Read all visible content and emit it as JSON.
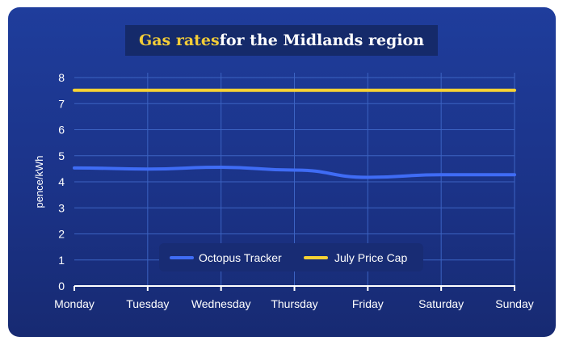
{
  "title": {
    "highlight": "Gas rates",
    "rest": " for the Midlands region"
  },
  "chart_data": {
    "type": "line",
    "title": "Gas rates for the Midlands region",
    "xlabel": "",
    "ylabel": "pence/kWh",
    "categories": [
      "Monday",
      "Tuesday",
      "Wednesday",
      "Thursday",
      "Friday",
      "Saturday",
      "Sunday"
    ],
    "ylim": [
      0,
      8
    ],
    "yticks": [
      0,
      1,
      2,
      3,
      4,
      5,
      6,
      7,
      8
    ],
    "grid": true,
    "legend_position": "bottom-center",
    "series": [
      {
        "name": "Octopus Tracker",
        "color": "#3f6cf5",
        "values": [
          4.53,
          4.49,
          4.56,
          4.45,
          4.17,
          4.27,
          4.27
        ]
      },
      {
        "name": "July Price Cap",
        "color": "#f7d234",
        "values": [
          7.51,
          7.51,
          7.51,
          7.51,
          7.51,
          7.51,
          7.51
        ]
      }
    ]
  },
  "colors": {
    "background": "#1c3690",
    "grid": "#3c63c2",
    "axis": "#ffffff"
  }
}
